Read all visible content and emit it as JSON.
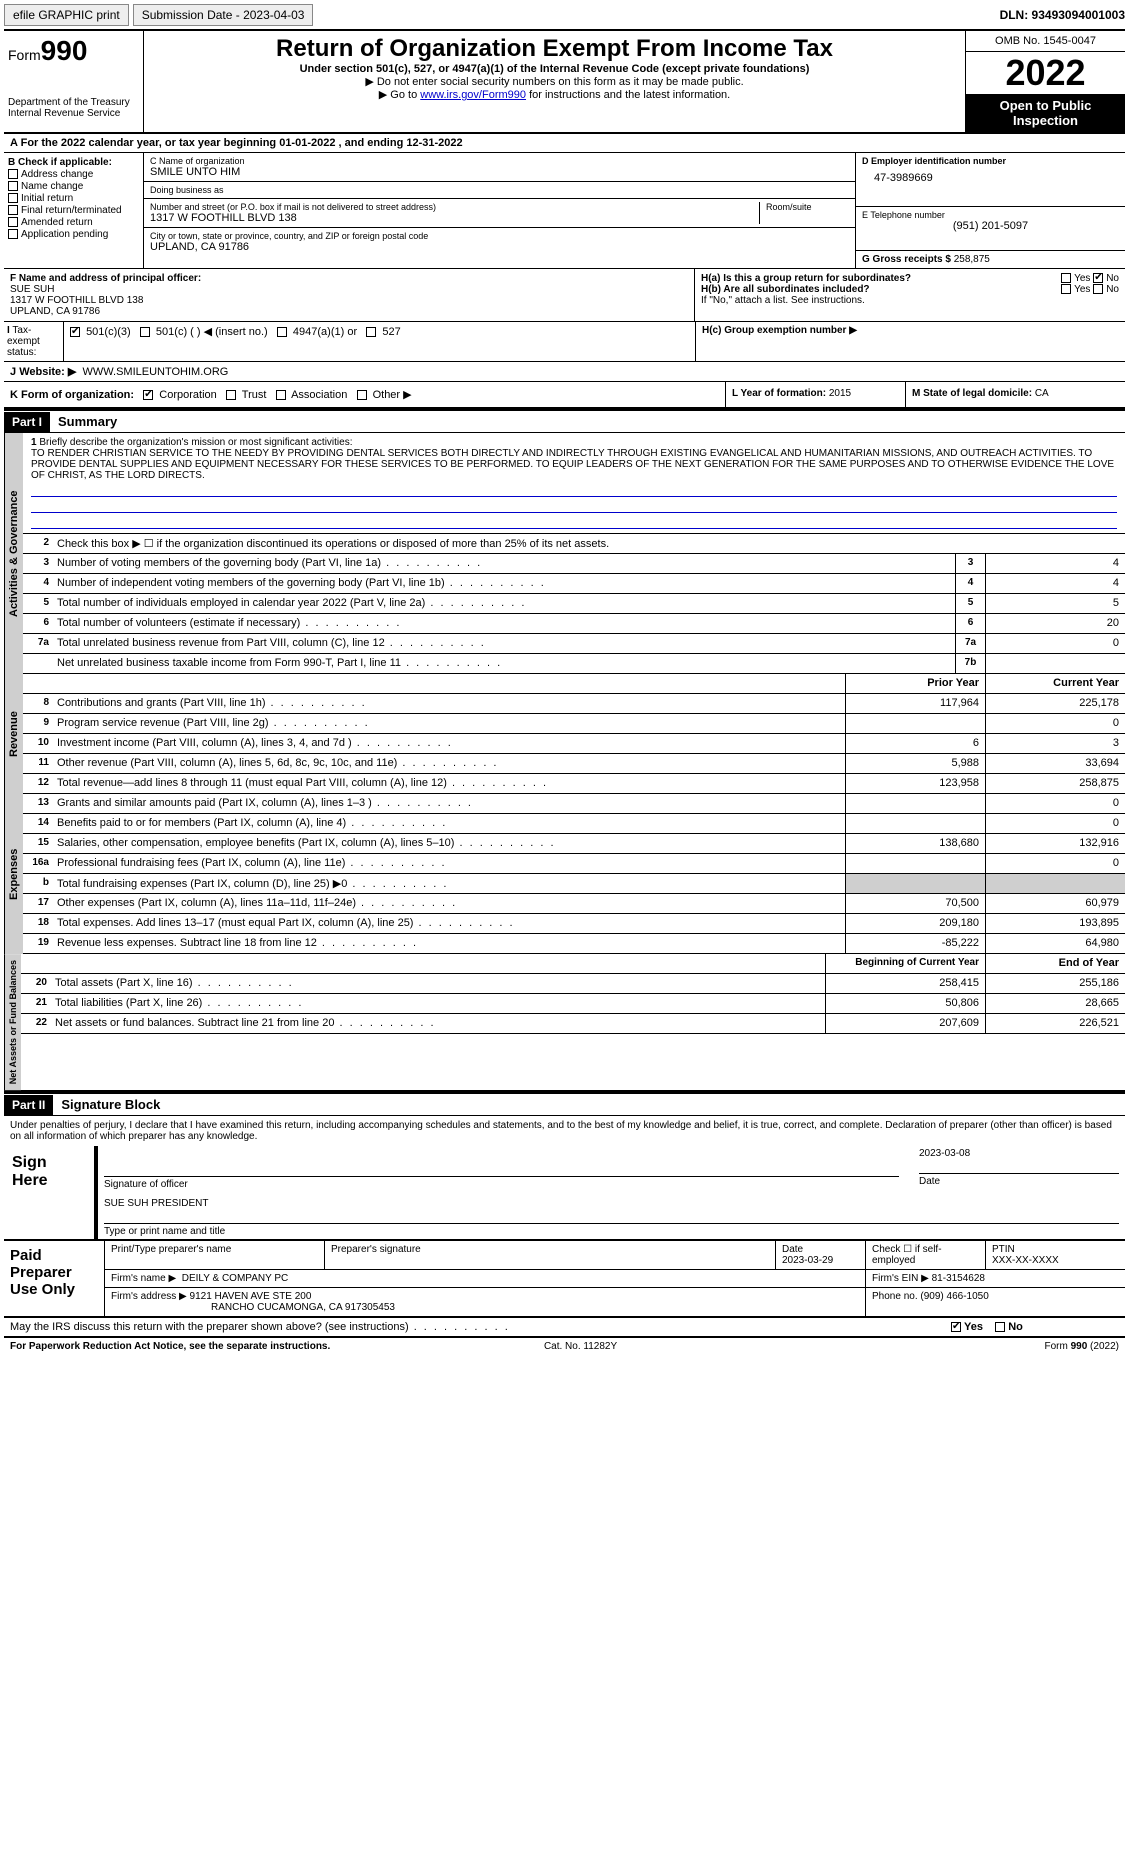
{
  "topbar": {
    "efile": "efile GRAPHIC print",
    "submission": "Submission Date - 2023-04-03",
    "dln": "DLN: 93493094001003"
  },
  "header": {
    "form_prefix": "Form",
    "form_num": "990",
    "dept": "Department of the Treasury",
    "irs": "Internal Revenue Service",
    "title": "Return of Organization Exempt From Income Tax",
    "subtitle": "Under section 501(c), 527, or 4947(a)(1) of the Internal Revenue Code (except private foundations)",
    "note1": "▶ Do not enter social security numbers on this form as it may be made public.",
    "note2_pre": "▶ Go to ",
    "note2_link": "www.irs.gov/Form990",
    "note2_post": " for instructions and the latest information.",
    "omb": "OMB No. 1545-0047",
    "year": "2022",
    "openpub": "Open to Public Inspection"
  },
  "A": {
    "text": "For the 2022 calendar year, or tax year beginning 01-01-2022   , and ending 12-31-2022"
  },
  "B": {
    "title": "B Check if applicable:",
    "opts": [
      "Address change",
      "Name change",
      "Initial return",
      "Final return/terminated",
      "Amended return",
      "Application pending"
    ]
  },
  "C": {
    "name_lbl": "C Name of organization",
    "name": "SMILE UNTO HIM",
    "dba_lbl": "Doing business as",
    "dba": "",
    "addr_lbl": "Number and street (or P.O. box if mail is not delivered to street address)",
    "room_lbl": "Room/suite",
    "addr": "1317 W FOOTHILL BLVD 138",
    "city_lbl": "City or town, state or province, country, and ZIP or foreign postal code",
    "city": "UPLAND, CA  91786"
  },
  "D": {
    "lbl": "D Employer identification number",
    "val": "47-3989669"
  },
  "E": {
    "lbl": "E Telephone number",
    "val": "(951) 201-5097"
  },
  "G": {
    "lbl": "G Gross receipts $",
    "val": "258,875"
  },
  "F": {
    "lbl": "F Name and address of principal officer:",
    "name": "SUE SUH",
    "addr1": "1317 W FOOTHILL BLVD 138",
    "addr2": "UPLAND, CA  91786"
  },
  "H": {
    "ha": "H(a)  Is this a group return for subordinates?",
    "hb": "H(b)  Are all subordinates included?",
    "hb_note": "If \"No,\" attach a list. See instructions.",
    "hc": "H(c)  Group exemption number ▶",
    "yes": "Yes",
    "no": "No"
  },
  "I": {
    "lbl": "Tax-exempt status:",
    "o1": "501(c)(3)",
    "o2": "501(c) (  ) ◀ (insert no.)",
    "o3": "4947(a)(1) or",
    "o4": "527"
  },
  "J": {
    "lbl": "Website: ▶",
    "val": "WWW.SMILEUNTOHIM.ORG"
  },
  "K": {
    "lbl": "K Form of organization:",
    "o1": "Corporation",
    "o2": "Trust",
    "o3": "Association",
    "o4": "Other ▶"
  },
  "L": {
    "lbl": "L Year of formation:",
    "val": "2015"
  },
  "M": {
    "lbl": "M State of legal domicile:",
    "val": "CA"
  },
  "part1": {
    "hdr": "Part I",
    "title": "Summary",
    "line1_lbl": "Briefly describe the organization's mission or most significant activities:",
    "mission": "TO RENDER CHRISTIAN SERVICE TO THE NEEDY BY PROVIDING DENTAL SERVICES BOTH DIRECTLY AND INDIRECTLY THROUGH EXISTING EVANGELICAL AND HUMANITARIAN MISSIONS, AND OUTREACH ACTIVITIES. TO PROVIDE DENTAL SUPPLIES AND EQUIPMENT NECESSARY FOR THESE SERVICES TO BE PERFORMED. TO EQUIP LEADERS OF THE NEXT GENERATION FOR THE SAME PURPOSES AND TO OTHERWISE EVIDENCE THE LOVE OF CHRIST, AS THE LORD DIRECTS.",
    "line2": "Check this box ▶ ☐  if the organization discontinued its operations or disposed of more than 25% of its net assets.",
    "gov": [
      {
        "n": "3",
        "t": "Number of voting members of the governing body (Part VI, line 1a)",
        "b": "3",
        "v": "4"
      },
      {
        "n": "4",
        "t": "Number of independent voting members of the governing body (Part VI, line 1b)",
        "b": "4",
        "v": "4"
      },
      {
        "n": "5",
        "t": "Total number of individuals employed in calendar year 2022 (Part V, line 2a)",
        "b": "5",
        "v": "5"
      },
      {
        "n": "6",
        "t": "Total number of volunteers (estimate if necessary)",
        "b": "6",
        "v": "20"
      },
      {
        "n": "7a",
        "t": "Total unrelated business revenue from Part VIII, column (C), line 12",
        "b": "7a",
        "v": "0"
      },
      {
        "n": "",
        "t": "Net unrelated business taxable income from Form 990-T, Part I, line 11",
        "b": "7b",
        "v": ""
      }
    ],
    "col_prior": "Prior Year",
    "col_curr": "Current Year",
    "rev": [
      {
        "n": "8",
        "t": "Contributions and grants (Part VIII, line 1h)",
        "p": "117,964",
        "c": "225,178"
      },
      {
        "n": "9",
        "t": "Program service revenue (Part VIII, line 2g)",
        "p": "",
        "c": "0"
      },
      {
        "n": "10",
        "t": "Investment income (Part VIII, column (A), lines 3, 4, and 7d )",
        "p": "6",
        "c": "3"
      },
      {
        "n": "11",
        "t": "Other revenue (Part VIII, column (A), lines 5, 6d, 8c, 9c, 10c, and 11e)",
        "p": "5,988",
        "c": "33,694"
      },
      {
        "n": "12",
        "t": "Total revenue—add lines 8 through 11 (must equal Part VIII, column (A), line 12)",
        "p": "123,958",
        "c": "258,875"
      }
    ],
    "exp": [
      {
        "n": "13",
        "t": "Grants and similar amounts paid (Part IX, column (A), lines 1–3 )",
        "p": "",
        "c": "0"
      },
      {
        "n": "14",
        "t": "Benefits paid to or for members (Part IX, column (A), line 4)",
        "p": "",
        "c": "0"
      },
      {
        "n": "15",
        "t": "Salaries, other compensation, employee benefits (Part IX, column (A), lines 5–10)",
        "p": "138,680",
        "c": "132,916"
      },
      {
        "n": "16a",
        "t": "Professional fundraising fees (Part IX, column (A), line 11e)",
        "p": "",
        "c": "0"
      },
      {
        "n": "b",
        "t": "Total fundraising expenses (Part IX, column (D), line 25) ▶0",
        "p": "GRAY",
        "c": "GRAY"
      },
      {
        "n": "17",
        "t": "Other expenses (Part IX, column (A), lines 11a–11d, 11f–24e)",
        "p": "70,500",
        "c": "60,979"
      },
      {
        "n": "18",
        "t": "Total expenses. Add lines 13–17 (must equal Part IX, column (A), line 25)",
        "p": "209,180",
        "c": "193,895"
      },
      {
        "n": "19",
        "t": "Revenue less expenses. Subtract line 18 from line 12",
        "p": "-85,222",
        "c": "64,980"
      }
    ],
    "col_beg": "Beginning of Current Year",
    "col_end": "End of Year",
    "net": [
      {
        "n": "20",
        "t": "Total assets (Part X, line 16)",
        "p": "258,415",
        "c": "255,186"
      },
      {
        "n": "21",
        "t": "Total liabilities (Part X, line 26)",
        "p": "50,806",
        "c": "28,665"
      },
      {
        "n": "22",
        "t": "Net assets or fund balances. Subtract line 21 from line 20",
        "p": "207,609",
        "c": "226,521"
      }
    ],
    "tab_gov": "Activities & Governance",
    "tab_rev": "Revenue",
    "tab_exp": "Expenses",
    "tab_net": "Net Assets or Fund Balances"
  },
  "part2": {
    "hdr": "Part II",
    "title": "Signature Block",
    "decl": "Under penalties of perjury, I declare that I have examined this return, including accompanying schedules and statements, and to the best of my knowledge and belief, it is true, correct, and complete. Declaration of preparer (other than officer) is based on all information of which preparer has any knowledge.",
    "sign_here": "Sign Here",
    "sig_officer": "Signature of officer",
    "sig_date": "2023-03-08",
    "date_lbl": "Date",
    "name_title": "SUE SUH  PRESIDENT",
    "type_name": "Type or print name and title",
    "paid": "Paid Preparer Use Only",
    "p_name_lbl": "Print/Type preparer's name",
    "p_sig_lbl": "Preparer's signature",
    "p_date_lbl": "Date",
    "p_date": "2023-03-29",
    "p_self": "Check ☐ if self-employed",
    "ptin_lbl": "PTIN",
    "ptin": "XXX-XX-XXXX",
    "firm_name_lbl": "Firm's name   ▶",
    "firm_name": "DEILY & COMPANY PC",
    "firm_ein_lbl": "Firm's EIN ▶",
    "firm_ein": "81-3154628",
    "firm_addr_lbl": "Firm's address ▶",
    "firm_addr1": "9121 HAVEN AVE STE 200",
    "firm_addr2": "RANCHO CUCAMONGA, CA  917305453",
    "phone_lbl": "Phone no.",
    "phone": "(909) 466-1050",
    "discuss": "May the IRS discuss this return with the preparer shown above? (see instructions)",
    "yes": "Yes",
    "no": "No"
  },
  "footer": {
    "left": "For Paperwork Reduction Act Notice, see the separate instructions.",
    "mid": "Cat. No. 11282Y",
    "right": "Form 990 (2022)"
  }
}
